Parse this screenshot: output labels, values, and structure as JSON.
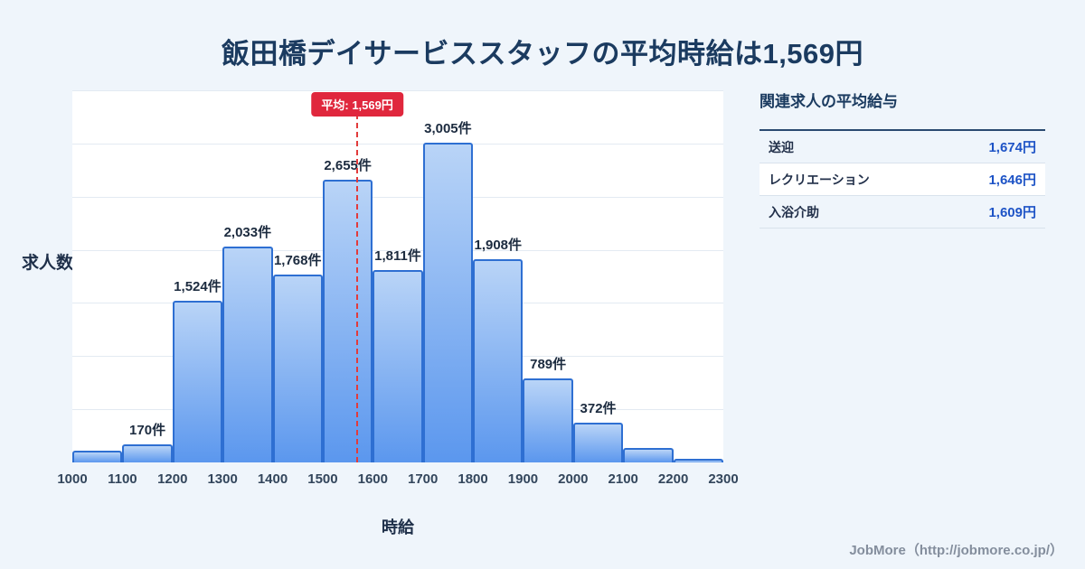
{
  "title": "飯田橋デイサービススタッフの平均時給は1,569円",
  "chart_data": {
    "type": "bar",
    "title": "飯田橋デイサービススタッフの平均時給は1,569円",
    "xlabel": "時給",
    "ylabel": "求人数",
    "bin_edges": [
      1000,
      1100,
      1200,
      1300,
      1400,
      1500,
      1600,
      1700,
      1800,
      1900,
      2000,
      2100,
      2200,
      2300
    ],
    "categories": [
      "1000",
      "1100",
      "1200",
      "1300",
      "1400",
      "1500",
      "1600",
      "1700",
      "1800",
      "1900",
      "2000",
      "2100",
      "2200",
      "2300"
    ],
    "values": [
      110,
      170,
      1524,
      2033,
      1768,
      2655,
      1811,
      3005,
      1908,
      789,
      372,
      140,
      30
    ],
    "bar_labels": [
      "",
      "170件",
      "1,524件",
      "2,033件",
      "1,768件",
      "2,655件",
      "1,811件",
      "3,005件",
      "1,908件",
      "789件",
      "372件",
      "",
      ""
    ],
    "ylim": [
      0,
      3500
    ],
    "gridline_step": 500,
    "grid": true,
    "legend": "none",
    "average": {
      "value": 1569,
      "label": "平均: 1,569円"
    },
    "colors": {
      "bar_fill_top": "#b9d4f7",
      "bar_fill_bottom": "#5b97ee",
      "bar_border": "#2e6fd2",
      "average_line": "#e23b3b",
      "badge_bg": "#e0273d"
    }
  },
  "side_panel": {
    "heading": "関連求人の平均給与",
    "rows": [
      {
        "label": "送迎",
        "value": "1,674円"
      },
      {
        "label": "レクリエーション",
        "value": "1,646円"
      },
      {
        "label": "入浴介助",
        "value": "1,609円"
      }
    ]
  },
  "footer": {
    "credit": "JobMore（http://jobmore.co.jp/）"
  }
}
